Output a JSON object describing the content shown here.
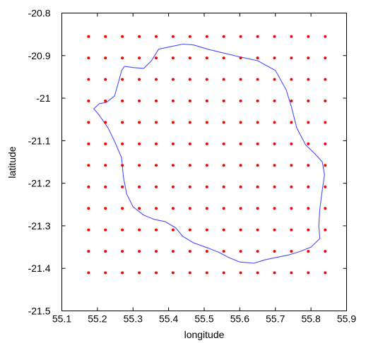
{
  "chart_data": {
    "type": "scatter",
    "title": "",
    "xlabel": "longitude",
    "ylabel": "latitude",
    "xlim": [
      55.1,
      55.9
    ],
    "ylim": [
      -21.5,
      -20.8
    ],
    "grid": false,
    "x_ticks": [
      "55.1",
      "55.2",
      "55.3",
      "55.4",
      "55.5",
      "55.6",
      "55.7",
      "55.8",
      "55.9"
    ],
    "y_ticks": [
      "-20.8",
      "-20.9",
      "-21",
      "-21.1",
      "-21.2",
      "-21.3",
      "-21.4",
      "-21.5"
    ],
    "series": [
      {
        "type": "grid-points",
        "color": "#ff0000",
        "x_start": 55.175,
        "x_step": 0.0475,
        "x_count": 15,
        "y_start": -20.855,
        "y_step": -0.0505,
        "y_count": 12
      },
      {
        "type": "outline",
        "color": "#4b4bff",
        "points": [
          [
            55.276,
            -20.925
          ],
          [
            55.3,
            -20.928
          ],
          [
            55.33,
            -20.93
          ],
          [
            55.352,
            -20.912
          ],
          [
            55.372,
            -20.885
          ],
          [
            55.4,
            -20.88
          ],
          [
            55.44,
            -20.873
          ],
          [
            55.47,
            -20.875
          ],
          [
            55.51,
            -20.885
          ],
          [
            55.56,
            -20.895
          ],
          [
            55.6,
            -20.903
          ],
          [
            55.65,
            -20.912
          ],
          [
            55.7,
            -20.935
          ],
          [
            55.73,
            -20.98
          ],
          [
            55.745,
            -21.02
          ],
          [
            55.76,
            -21.07
          ],
          [
            55.785,
            -21.11
          ],
          [
            55.81,
            -21.13
          ],
          [
            55.832,
            -21.15
          ],
          [
            55.838,
            -21.18
          ],
          [
            55.832,
            -21.215
          ],
          [
            55.825,
            -21.26
          ],
          [
            55.822,
            -21.3
          ],
          [
            55.825,
            -21.33
          ],
          [
            55.8,
            -21.35
          ],
          [
            55.77,
            -21.36
          ],
          [
            55.74,
            -21.368
          ],
          [
            55.7,
            -21.375
          ],
          [
            55.67,
            -21.38
          ],
          [
            55.64,
            -21.388
          ],
          [
            55.6,
            -21.385
          ],
          [
            55.57,
            -21.375
          ],
          [
            55.54,
            -21.362
          ],
          [
            55.51,
            -21.352
          ],
          [
            55.47,
            -21.34
          ],
          [
            55.44,
            -21.325
          ],
          [
            55.42,
            -21.305
          ],
          [
            55.39,
            -21.29
          ],
          [
            55.36,
            -21.285
          ],
          [
            55.33,
            -21.275
          ],
          [
            55.3,
            -21.255
          ],
          [
            55.282,
            -21.225
          ],
          [
            55.273,
            -21.185
          ],
          [
            55.268,
            -21.14
          ],
          [
            55.25,
            -21.105
          ],
          [
            55.23,
            -21.07
          ],
          [
            55.205,
            -21.04
          ],
          [
            55.19,
            -21.025
          ],
          [
            55.205,
            -21.013
          ],
          [
            55.225,
            -21.01
          ],
          [
            55.248,
            -20.995
          ],
          [
            55.26,
            -20.96
          ],
          [
            55.268,
            -20.935
          ],
          [
            55.276,
            -20.925
          ]
        ]
      }
    ]
  }
}
